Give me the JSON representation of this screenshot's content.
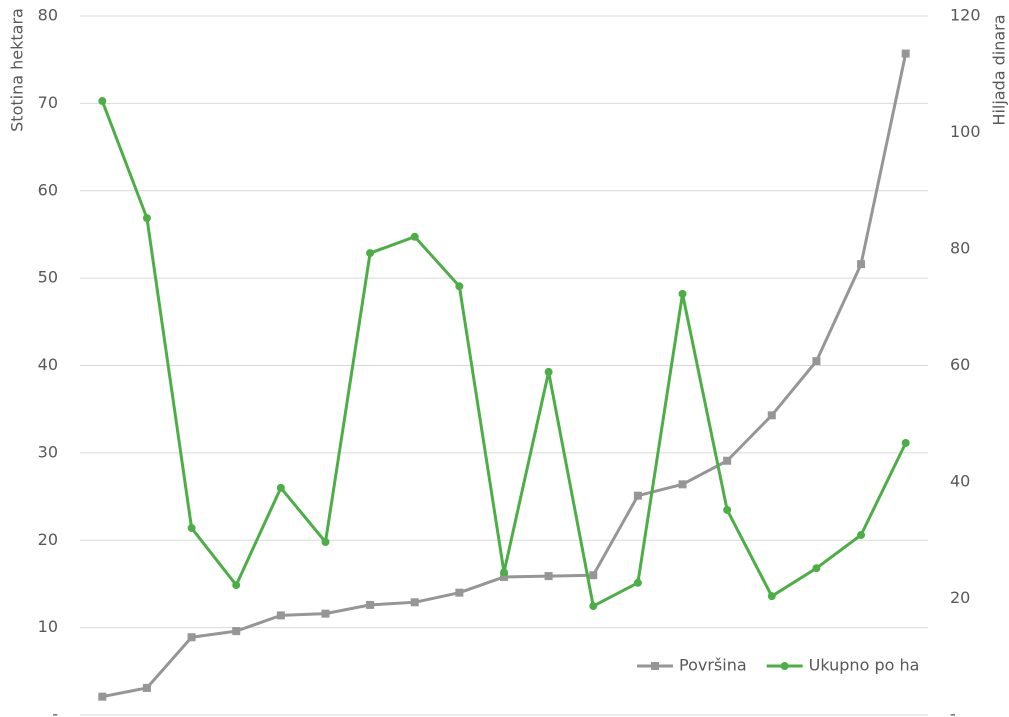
{
  "chart_data": {
    "type": "line",
    "ylabel": "Stotina hektara",
    "y2label": "Hiljada dinara",
    "categories": [
      null,
      null,
      null,
      null,
      null,
      null,
      null,
      null,
      null,
      null,
      null,
      null,
      null,
      null,
      null,
      null,
      null,
      null,
      null
    ],
    "series": [
      {
        "name": "Površina",
        "color": "#969696",
        "marker": "square",
        "axis": "y",
        "values": [
          2.1,
          3.1,
          8.9,
          9.6,
          11.4,
          11.6,
          12.6,
          12.9,
          14.0,
          15.8,
          15.9,
          16.0,
          25.1,
          26.4,
          29.1,
          34.3,
          40.5,
          51.6,
          75.7
        ]
      },
      {
        "name": "Ukupno po ha",
        "color": "#4caf45",
        "marker": "circle",
        "axis": "y2",
        "values": [
          105.4,
          85.3,
          32.1,
          22.3,
          39.0,
          29.7,
          79.3,
          82.1,
          73.6,
          24.5,
          58.9,
          18.7,
          22.7,
          72.3,
          35.2,
          20.4,
          25.2,
          30.9,
          46.7
        ]
      }
    ],
    "ylim": [
      0,
      80
    ],
    "yticks": [
      {
        "value": 0,
        "label": "-"
      },
      10,
      20,
      30,
      40,
      50,
      60,
      70,
      80
    ],
    "y2lim": [
      0,
      120
    ],
    "y2ticks": [
      {
        "value": 0,
        "label": "-"
      },
      20,
      40,
      60,
      80,
      100,
      120
    ],
    "grid": true,
    "legend": "lower right"
  }
}
